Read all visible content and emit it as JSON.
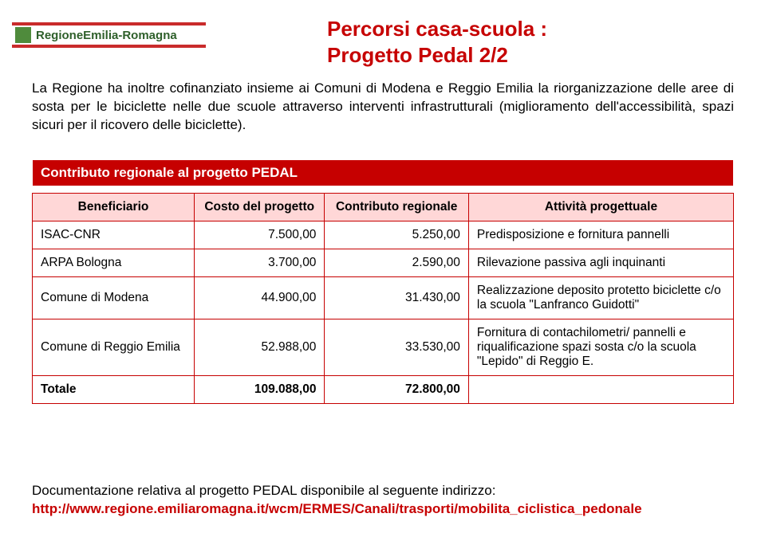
{
  "logo_text": "RegioneEmilia-Romagna",
  "title": {
    "line1": "Percorsi casa-scuola :",
    "line2": "Progetto Pedal 2/2",
    "color": "#c60000",
    "fontsize": 26
  },
  "intro": "La Regione ha inoltre cofinanziato insieme ai Comuni di Modena e Reggio Emilia la riorganizzazione delle aree di sosta per le biciclette nelle due scuole attraverso interventi infrastrutturali (miglioramento dell'accessibilità, spazi sicuri per il ricovero delle biciclette).",
  "banner": "Contributo regionale al progetto PEDAL",
  "table": {
    "columns": [
      "Beneficiario",
      "Costo del progetto",
      "Contributo regionale",
      "Attività progettuale"
    ],
    "header_bg": "#ffd7d7",
    "border_color": "#c60000",
    "banner_bg": "#c60000",
    "rows": [
      {
        "b": "ISAC-CNR",
        "c": "7.500,00",
        "r": "5.250,00",
        "a": "Predisposizione e fornitura pannelli"
      },
      {
        "b": "ARPA Bologna",
        "c": "3.700,00",
        "r": "2.590,00",
        "a": "Rilevazione passiva agli inquinanti"
      },
      {
        "b": "Comune di Modena",
        "c": "44.900,00",
        "r": "31.430,00",
        "a": "Realizzazione deposito protetto biciclette c/o la scuola \"Lanfranco Guidotti\""
      },
      {
        "b": "Comune di Reggio Emilia",
        "c": "52.988,00",
        "r": "33.530,00",
        "a": "Fornitura di contachilometri/ pannelli e riqualificazione spazi sosta c/o la scuola \"Lepido\" di Reggio E."
      }
    ],
    "total": {
      "b": "Totale",
      "c": "109.088,00",
      "r": "72.800,00",
      "a": ""
    }
  },
  "footer": {
    "text": "Documentazione relativa al progetto PEDAL disponibile al seguente indirizzo:",
    "link": "http://www.regione.emiliaromagna.it/wcm/ERMES/Canali/trasporti/mobilita_ciclistica_pedonale"
  }
}
